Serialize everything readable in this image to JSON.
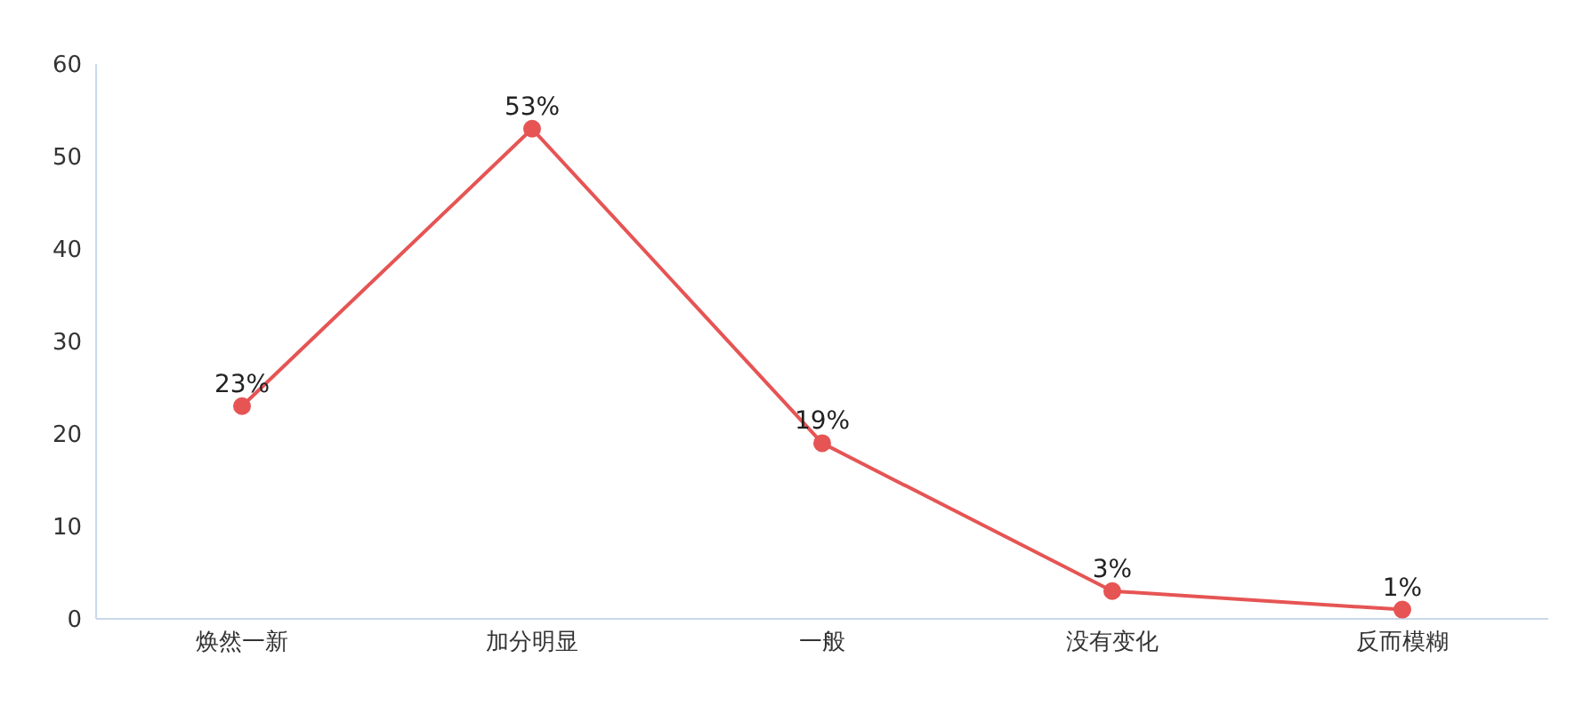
{
  "chart_data": {
    "type": "line",
    "categories": [
      "焕然一新",
      "加分明显",
      "一般",
      "没有变化",
      "反而模糊"
    ],
    "series": [
      {
        "color": "#e65454",
        "values": [
          23,
          53,
          19,
          3,
          1
        ],
        "value_labels": [
          "23%",
          "53%",
          "19%",
          "3%",
          "1%"
        ]
      }
    ],
    "ylim": [
      0,
      60
    ],
    "yticks": [
      0,
      10,
      20,
      30,
      40,
      50,
      60
    ],
    "marker": "circle",
    "grid": false,
    "legend": false
  }
}
